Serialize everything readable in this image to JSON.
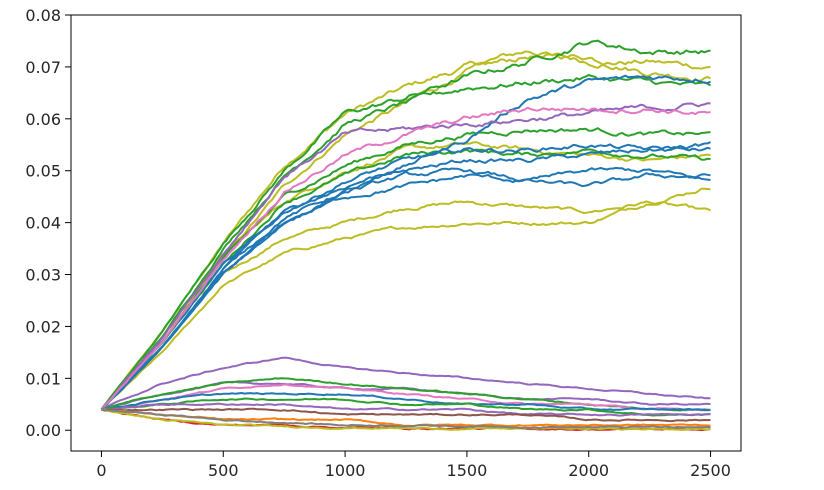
{
  "chart_data": {
    "type": "line",
    "title": "",
    "xlabel": "",
    "ylabel": "",
    "xlim": [
      -125,
      2625
    ],
    "ylim": [
      -0.004,
      0.08
    ],
    "xticks": [
      0,
      500,
      1000,
      1500,
      2000,
      2500
    ],
    "yticks": [
      0.0,
      0.01,
      0.02,
      0.03,
      0.04,
      0.05,
      0.06,
      0.07,
      0.08
    ],
    "xtick_labels": [
      "0",
      "500",
      "1000",
      "1500",
      "2000",
      "2500"
    ],
    "ytick_labels": [
      "0.00",
      "0.01",
      "0.02",
      "0.03",
      "0.04",
      "0.05",
      "0.06",
      "0.07",
      "0.08"
    ],
    "grid": false,
    "legend": "none",
    "x": [
      0,
      250,
      500,
      750,
      1000,
      1250,
      1500,
      1750,
      2000,
      2250,
      2500
    ],
    "series": [
      {
        "color": "#bcbd22",
        "values": [
          0.004,
          0.019,
          0.036,
          0.051,
          0.061,
          0.066,
          0.07,
          0.073,
          0.071,
          0.071,
          0.07
        ]
      },
      {
        "color": "#bcbd22",
        "values": [
          0.004,
          0.017,
          0.033,
          0.047,
          0.057,
          0.063,
          0.069,
          0.072,
          0.072,
          0.069,
          0.068
        ]
      },
      {
        "color": "#bcbd22",
        "values": [
          0.004,
          0.016,
          0.03,
          0.037,
          0.04,
          0.043,
          0.044,
          0.043,
          0.042,
          0.044,
          0.042
        ]
      },
      {
        "color": "#bcbd22",
        "values": [
          0.004,
          0.015,
          0.028,
          0.034,
          0.037,
          0.039,
          0.04,
          0.04,
          0.04,
          0.044,
          0.047
        ]
      },
      {
        "color": "#bcbd22",
        "values": [
          0.004,
          0.018,
          0.034,
          0.044,
          0.05,
          0.054,
          0.055,
          0.054,
          0.053,
          0.052,
          0.053
        ]
      },
      {
        "color": "#2ca02c",
        "values": [
          0.004,
          0.019,
          0.036,
          0.05,
          0.061,
          0.064,
          0.068,
          0.071,
          0.075,
          0.073,
          0.073
        ]
      },
      {
        "color": "#2ca02c",
        "values": [
          0.004,
          0.018,
          0.035,
          0.049,
          0.059,
          0.063,
          0.066,
          0.067,
          0.068,
          0.067,
          0.066
        ]
      },
      {
        "color": "#2ca02c",
        "values": [
          0.004,
          0.017,
          0.033,
          0.045,
          0.051,
          0.055,
          0.057,
          0.058,
          0.058,
          0.057,
          0.057
        ]
      },
      {
        "color": "#2ca02c",
        "values": [
          0.004,
          0.017,
          0.032,
          0.044,
          0.049,
          0.053,
          0.054,
          0.053,
          0.054,
          0.053,
          0.052
        ]
      },
      {
        "color": "#1f77b4",
        "values": [
          0.004,
          0.017,
          0.032,
          0.042,
          0.047,
          0.051,
          0.056,
          0.064,
          0.067,
          0.068,
          0.068
        ]
      },
      {
        "color": "#1f77b4",
        "values": [
          0.004,
          0.016,
          0.031,
          0.042,
          0.048,
          0.052,
          0.054,
          0.054,
          0.055,
          0.054,
          0.055
        ]
      },
      {
        "color": "#1f77b4",
        "values": [
          0.004,
          0.016,
          0.031,
          0.041,
          0.046,
          0.05,
          0.052,
          0.052,
          0.053,
          0.054,
          0.054
        ]
      },
      {
        "color": "#1f77b4",
        "values": [
          0.004,
          0.016,
          0.03,
          0.04,
          0.045,
          0.047,
          0.049,
          0.048,
          0.047,
          0.049,
          0.049
        ]
      },
      {
        "color": "#1f77b4",
        "values": [
          0.004,
          0.016,
          0.03,
          0.04,
          0.046,
          0.049,
          0.05,
          0.048,
          0.05,
          0.05,
          0.048
        ]
      },
      {
        "color": "#9467bd",
        "values": [
          0.004,
          0.018,
          0.034,
          0.049,
          0.057,
          0.058,
          0.059,
          0.06,
          0.061,
          0.062,
          0.063
        ]
      },
      {
        "color": "#e377c2",
        "values": [
          0.004,
          0.017,
          0.033,
          0.046,
          0.053,
          0.057,
          0.06,
          0.062,
          0.062,
          0.062,
          0.061
        ]
      },
      {
        "color": "#9467bd",
        "values": [
          0.004,
          0.009,
          0.012,
          0.014,
          0.012,
          0.011,
          0.01,
          0.009,
          0.008,
          0.007,
          0.006
        ]
      },
      {
        "color": "#9467bd",
        "values": [
          0.004,
          0.007,
          0.009,
          0.009,
          0.008,
          0.008,
          0.007,
          0.006,
          0.006,
          0.005,
          0.005
        ]
      },
      {
        "color": "#2ca02c",
        "values": [
          0.004,
          0.007,
          0.009,
          0.01,
          0.009,
          0.008,
          0.007,
          0.006,
          0.005,
          0.004,
          0.004
        ]
      },
      {
        "color": "#e377c2",
        "values": [
          0.004,
          0.006,
          0.008,
          0.009,
          0.008,
          0.007,
          0.006,
          0.005,
          0.005,
          0.004,
          0.004
        ]
      },
      {
        "color": "#1f77b4",
        "values": [
          0.004,
          0.006,
          0.007,
          0.007,
          0.007,
          0.006,
          0.005,
          0.005,
          0.004,
          0.004,
          0.004
        ]
      },
      {
        "color": "#2ca02c",
        "values": [
          0.004,
          0.005,
          0.006,
          0.006,
          0.006,
          0.005,
          0.005,
          0.004,
          0.004,
          0.003,
          0.003
        ]
      },
      {
        "color": "#9467bd",
        "values": [
          0.004,
          0.005,
          0.005,
          0.005,
          0.004,
          0.004,
          0.004,
          0.003,
          0.003,
          0.003,
          0.003
        ]
      },
      {
        "color": "#8c564b",
        "values": [
          0.004,
          0.004,
          0.004,
          0.004,
          0.003,
          0.003,
          0.003,
          0.003,
          0.002,
          0.002,
          0.002
        ]
      },
      {
        "color": "#ff7f0e",
        "values": [
          0.004,
          0.003,
          0.002,
          0.002,
          0.002,
          0.001,
          0.001,
          0.001,
          0.001,
          0.001,
          0.001
        ]
      },
      {
        "color": "#d62728",
        "values": [
          0.004,
          0.002,
          0.001,
          0.001,
          0.0005,
          0.0004,
          0.0003,
          0.0003,
          0.0002,
          0.0002,
          0.0002
        ]
      },
      {
        "color": "#bcbd22",
        "values": [
          0.004,
          0.002,
          0.001,
          0.0007,
          0.0005,
          0.0004,
          0.0003,
          0.0003,
          0.0003,
          0.0002,
          0.0002
        ]
      },
      {
        "color": "#7f7f7f",
        "values": [
          0.004,
          0.003,
          0.002,
          0.0015,
          0.001,
          0.001,
          0.0008,
          0.0007,
          0.0006,
          0.0006,
          0.0005
        ]
      }
    ]
  }
}
